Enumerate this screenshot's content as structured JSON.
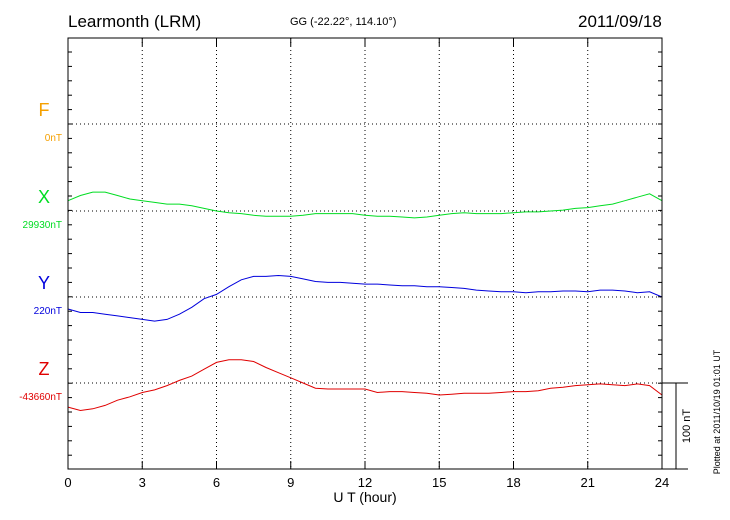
{
  "header": {
    "station": "Learmonth (LRM)",
    "coords": "GG (-22.22°, 114.10°)",
    "date": "2011/09/18"
  },
  "footer": {
    "plotted": "Plotted at 2011/10/19 01:01 UT"
  },
  "chart_data": {
    "type": "line",
    "title": "Learmonth (LRM)",
    "xlabel": "U T (hour)",
    "xlim": [
      0,
      24
    ],
    "xticks": [
      0,
      3,
      6,
      9,
      12,
      15,
      18,
      21,
      24
    ],
    "grid": true,
    "scale_bar": "100 nT",
    "series": [
      {
        "name": "F",
        "baseline_label": "0nT",
        "color": "#f5a000",
        "gridline": true,
        "x": [],
        "y": []
      },
      {
        "name": "X",
        "baseline_label": "29930nT",
        "color": "#00dd22",
        "x": [
          0,
          0.5,
          1,
          1.5,
          2,
          2.5,
          3,
          3.5,
          4,
          4.5,
          5,
          5.5,
          6,
          6.5,
          7,
          7.5,
          8,
          8.5,
          9,
          9.5,
          10,
          10.5,
          11,
          11.5,
          12,
          12.5,
          13,
          13.5,
          14,
          14.5,
          15,
          15.5,
          16,
          16.5,
          17,
          17.5,
          18,
          18.5,
          19,
          19.5,
          20,
          20.5,
          21,
          21.5,
          22,
          22.5,
          23,
          23.5,
          24
        ],
        "y": [
          12,
          18,
          22,
          22,
          18,
          14,
          12,
          10,
          8,
          8,
          6,
          3,
          0,
          -2,
          -3,
          -5,
          -6,
          -6,
          -6,
          -5,
          -3,
          -3,
          -3,
          -3,
          -5,
          -6,
          -6,
          -7,
          -8,
          -7,
          -5,
          -3,
          -2,
          -3,
          -3,
          -3,
          -2,
          -1,
          -1,
          0,
          1,
          3,
          4,
          6,
          8,
          12,
          16,
          20,
          12
        ]
      },
      {
        "name": "Y",
        "baseline_label": "220nT",
        "color": "#0000dd",
        "x": [
          0,
          0.5,
          1,
          1.5,
          2,
          2.5,
          3,
          3.5,
          4,
          4.5,
          5,
          5.5,
          6,
          6.5,
          7,
          7.5,
          8,
          8.5,
          9,
          9.5,
          10,
          10.5,
          11,
          11.5,
          12,
          12.5,
          13,
          13.5,
          14,
          14.5,
          15,
          15.5,
          16,
          16.5,
          17,
          17.5,
          18,
          18.5,
          19,
          19.5,
          20,
          20.5,
          21,
          21.5,
          22,
          22.5,
          23,
          23.5,
          24
        ],
        "y": [
          -14,
          -18,
          -18,
          -20,
          -22,
          -24,
          -26,
          -28,
          -26,
          -20,
          -12,
          -2,
          3,
          12,
          20,
          24,
          24,
          25,
          24,
          21,
          18,
          17,
          17,
          16,
          15,
          15,
          14,
          13,
          13,
          12,
          12,
          11,
          10,
          8,
          7,
          6,
          6,
          5,
          6,
          6,
          7,
          7,
          6,
          8,
          8,
          7,
          5,
          6,
          0
        ]
      },
      {
        "name": "Z",
        "baseline_label": "-43660nT",
        "color": "#e00000",
        "x": [
          0,
          0.5,
          1,
          1.5,
          2,
          2.5,
          3,
          3.5,
          4,
          4.5,
          5,
          5.5,
          6,
          6.5,
          7,
          7.5,
          8,
          8.5,
          9,
          9.5,
          10,
          10.5,
          11,
          11.5,
          12,
          12.5,
          13,
          13.5,
          14,
          14.5,
          15,
          15.5,
          16,
          16.5,
          17,
          17.5,
          18,
          18.5,
          19,
          19.5,
          20,
          20.5,
          21,
          21.5,
          22,
          22.5,
          23,
          23.5,
          24
        ],
        "y": [
          -28,
          -32,
          -30,
          -26,
          -20,
          -16,
          -11,
          -8,
          -3,
          3,
          8,
          16,
          24,
          27,
          27,
          25,
          18,
          12,
          6,
          0,
          -6,
          -7,
          -7,
          -7,
          -7,
          -11,
          -10,
          -10,
          -11,
          -12,
          -14,
          -13,
          -12,
          -12,
          -12,
          -11,
          -10,
          -10,
          -9,
          -6,
          -5,
          -3,
          -2,
          -1,
          -2,
          -3,
          -1,
          -3,
          -14
        ]
      }
    ]
  }
}
